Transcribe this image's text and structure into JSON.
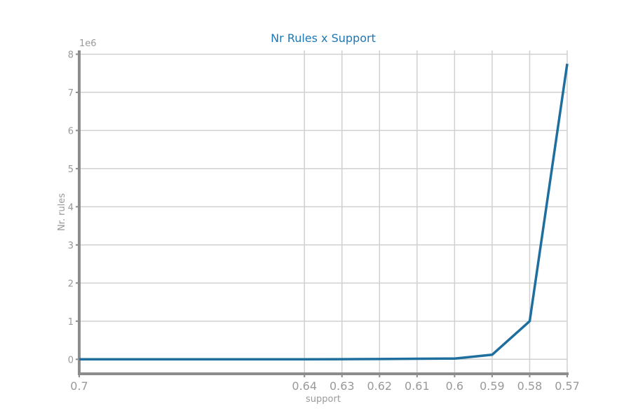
{
  "chart_data": {
    "type": "line",
    "title": "Nr Rules x Support",
    "xlabel": "support",
    "ylabel": "Nr. rules",
    "y_offset_label": "1e6",
    "x_inverted": true,
    "xlim": [
      0.7,
      0.57
    ],
    "ylim": [
      -0.38,
      8.1
    ],
    "x_ticks": [
      0.7,
      0.64,
      0.63,
      0.62,
      0.61,
      0.6,
      0.59,
      0.58,
      0.57
    ],
    "x_tick_labels": [
      "0.7",
      "0.64",
      "0.63",
      "0.62",
      "0.61",
      "0.6",
      "0.59",
      "0.58",
      "0.57"
    ],
    "y_ticks": [
      0,
      1,
      2,
      3,
      4,
      5,
      6,
      7,
      8
    ],
    "y_tick_labels": [
      "0",
      "1",
      "2",
      "3",
      "4",
      "5",
      "6",
      "7",
      "8"
    ],
    "grid": true,
    "series": [
      {
        "color": "#1f6f9e",
        "x": [
          0.7,
          0.64,
          0.63,
          0.62,
          0.61,
          0.6,
          0.59,
          0.58,
          0.57
        ],
        "y": [
          0.0,
          0.001,
          0.003,
          0.008,
          0.015,
          0.02,
          0.12,
          1.0,
          7.75
        ]
      }
    ]
  }
}
